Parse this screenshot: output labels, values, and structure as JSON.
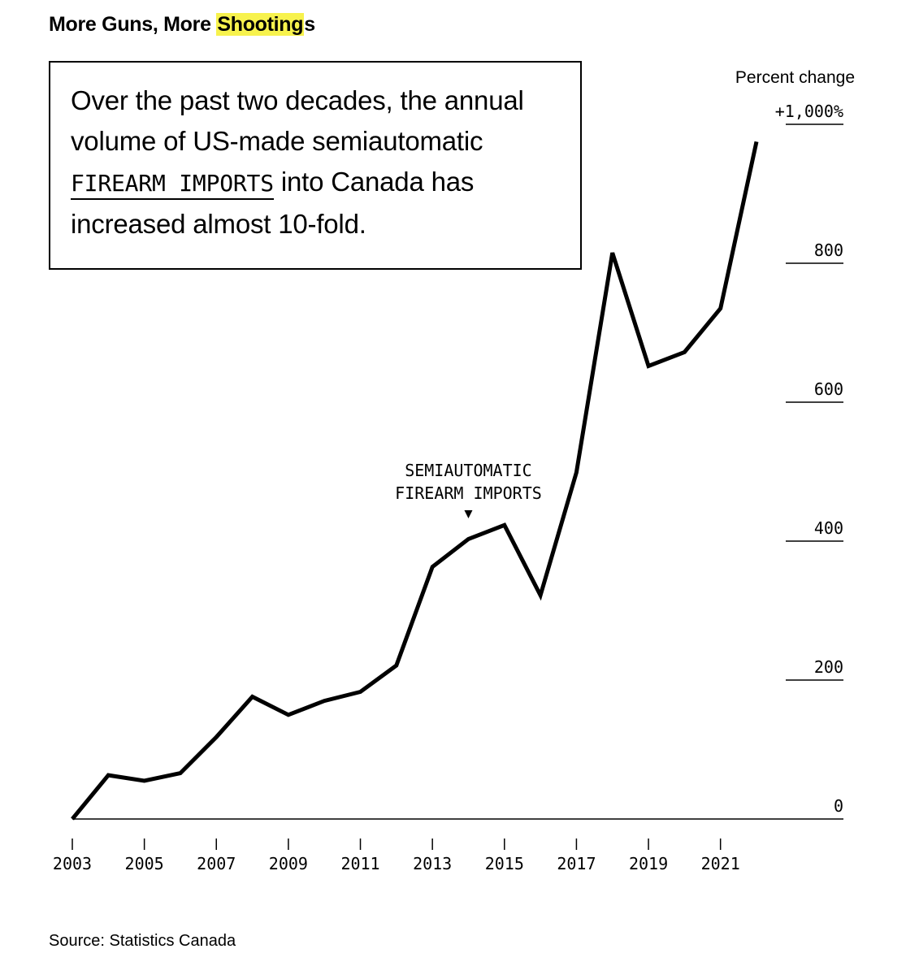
{
  "header": {
    "title_before": "More Guns, More ",
    "title_highlight": "Shooting",
    "title_after": "s"
  },
  "callout": {
    "text_before": "Over the past two decades, the annual volume of US-made semiautomatic ",
    "text_mono": "FIREARM IMPORTS",
    "text_after": " into Canada has increased almost 10-fold."
  },
  "source": "Source: Statistics Canada",
  "colors": {
    "line": "#000000",
    "highlight": "#f7f24d",
    "background": "#ffffff"
  },
  "chart_data": {
    "type": "line",
    "title": "More Guns, More Shootings",
    "ylabel": "Percent change",
    "ylim": [
      0,
      1000
    ],
    "yticks": [
      0,
      200,
      400,
      600,
      800,
      1000
    ],
    "ytick_labels": [
      "0",
      "200",
      "400",
      "600",
      "800",
      "+1,000%"
    ],
    "xlim": [
      2003,
      2022
    ],
    "xticks": [
      2003,
      2005,
      2007,
      2009,
      2011,
      2013,
      2015,
      2017,
      2019,
      2021
    ],
    "xtick_labels": [
      "2003",
      "2005",
      "2007",
      "2009",
      "2011",
      "2013",
      "2015",
      "2017",
      "2019",
      "2021"
    ],
    "grid": false,
    "legend": "none",
    "annotation": {
      "lines": [
        "SEMIAUTOMATIC",
        "FIREARM IMPORTS"
      ],
      "x": 2014,
      "y": 400
    },
    "series": [
      {
        "name": "SEMIAUTOMATIC FIREARM IMPORTS",
        "x": [
          2003,
          2004,
          2005,
          2006,
          2007,
          2008,
          2009,
          2010,
          2011,
          2012,
          2013,
          2014,
          2015,
          2016,
          2017,
          2018,
          2019,
          2020,
          2021,
          2022
        ],
        "values": [
          0,
          63,
          55,
          66,
          118,
          176,
          150,
          170,
          183,
          221,
          363,
          403,
          423,
          322,
          499,
          815,
          652,
          672,
          735,
          975
        ]
      }
    ]
  }
}
